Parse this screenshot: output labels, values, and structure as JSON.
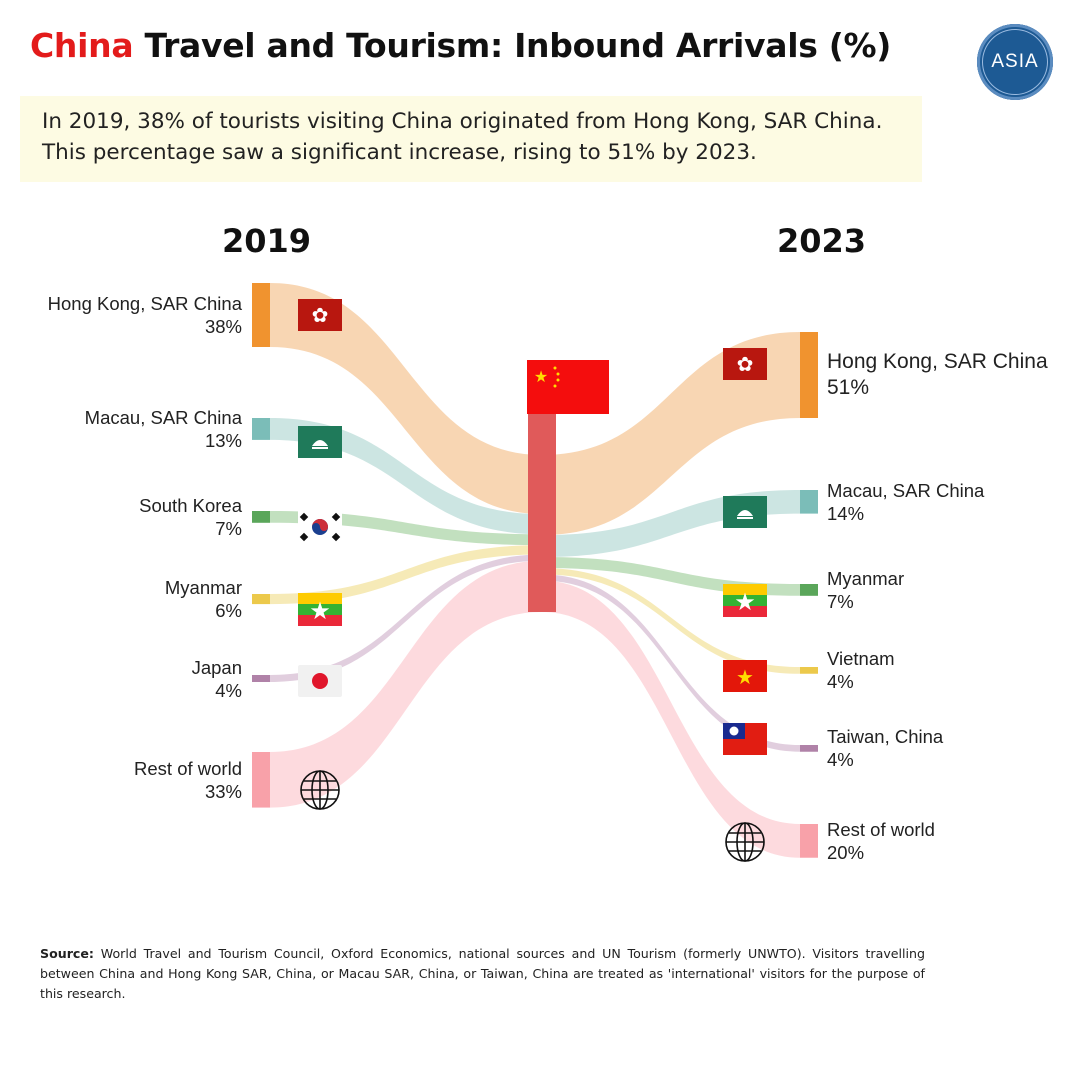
{
  "header": {
    "title_highlight": "China",
    "title_rest": " Travel and Tourism: Inbound Arrivals (%)",
    "logo_text": "ASIA",
    "callout": "In 2019, 38% of tourists visiting China originated from Hong Kong, SAR China. This percentage saw a significant increase, rising to 51% by 2023."
  },
  "chart_data": {
    "type": "sankey",
    "center_node": "China",
    "left_year": "2019",
    "right_year": "2023",
    "left": [
      {
        "label": "Hong Kong, SAR China",
        "pct": "38%",
        "value": 38,
        "color": "#f0932f",
        "flow": "#f7cfa6",
        "flag": "hong-kong"
      },
      {
        "label": "Macau, SAR China",
        "pct": "13%",
        "value": 13,
        "color": "#7bbdb8",
        "flow": "#c3e1dd",
        "flag": "macau"
      },
      {
        "label": "South Korea",
        "pct": "7%",
        "value": 7,
        "color": "#5aa65a",
        "flow": "#b7dab4",
        "flag": "south-korea"
      },
      {
        "label": "Myanmar",
        "pct": "6%",
        "value": 6,
        "color": "#ecc94b",
        "flow": "#f4e6aa",
        "flag": "myanmar"
      },
      {
        "label": "Japan",
        "pct": "4%",
        "value": 4,
        "color": "#b082a8",
        "flow": "#dcc6d8",
        "flag": "japan"
      },
      {
        "label": "Rest of world",
        "pct": "33%",
        "value": 33,
        "color": "#f8a1a9",
        "flow": "#fdd3d8",
        "flag": "globe"
      }
    ],
    "right": [
      {
        "label": "Hong Kong, SAR China",
        "pct": "51%",
        "value": 51,
        "color": "#f0932f",
        "flow": "#f7cfa6",
        "flag": "hong-kong"
      },
      {
        "label": "Macau, SAR China",
        "pct": "14%",
        "value": 14,
        "color": "#7bbdb8",
        "flow": "#c3e1dd",
        "flag": "macau"
      },
      {
        "label": "Myanmar",
        "pct": "7%",
        "value": 7,
        "color": "#5aa65a",
        "flow": "#b7dab4",
        "flag": "myanmar"
      },
      {
        "label": "Vietnam",
        "pct": "4%",
        "value": 4,
        "color": "#ecc94b",
        "flow": "#f4e6aa",
        "flag": "vietnam"
      },
      {
        "label": "Taiwan, China",
        "pct": "4%",
        "value": 4,
        "color": "#b082a8",
        "flow": "#dcc6d8",
        "flag": "taiwan"
      },
      {
        "label": "Rest of world",
        "pct": "20%",
        "value": 20,
        "color": "#f8a1a9",
        "flow": "#fdd3d8",
        "flag": "globe"
      }
    ],
    "center_color": "#e05a5a"
  },
  "footer": {
    "source_label": "Source:",
    "source_text": " World Travel and Tourism Council, Oxford Economics, national sources and UN Tourism (formerly UNWTO). Visitors travelling between China and Hong Kong SAR, China, or Macau SAR, China, or Taiwan, China are treated as 'international' visitors for the purpose of this research."
  }
}
